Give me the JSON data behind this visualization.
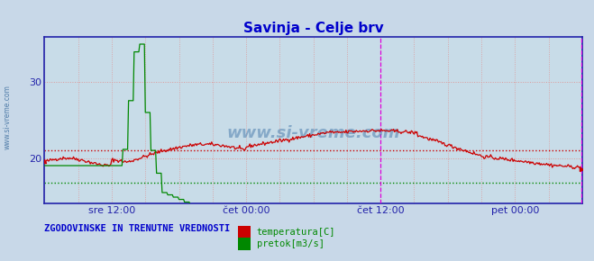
{
  "title": "Savinja - Celje brv",
  "title_color": "#0000cc",
  "title_fontsize": 11,
  "fig_bg_color": "#c8d8e8",
  "plot_bg_color": "#c8dce8",
  "xlim": [
    0,
    576
  ],
  "ylim": [
    14,
    36
  ],
  "yticks": [
    20,
    30
  ],
  "xtick_labels": [
    "sre 12:00",
    "čet 00:00",
    "čet 12:00",
    "pet 00:00"
  ],
  "xtick_positions": [
    72,
    216,
    360,
    504
  ],
  "hgrid_color": "#dd9999",
  "vgrid_color": "#dd9999",
  "axis_color": "#2222aa",
  "temp_color": "#cc0000",
  "flow_color": "#008800",
  "temp_avg": 21.0,
  "flow_avg": 16.8,
  "watermark": "www.si-vreme.com",
  "legend_label1": "temperatura[C]",
  "legend_label2": "pretok[m3/s]",
  "bottom_text": "ZGODOVINSKE IN TRENUTNE VREDNOSTI",
  "bottom_text_color": "#0000cc",
  "vline_color": "#dd00dd",
  "magenta_vlines": [
    360,
    575
  ]
}
